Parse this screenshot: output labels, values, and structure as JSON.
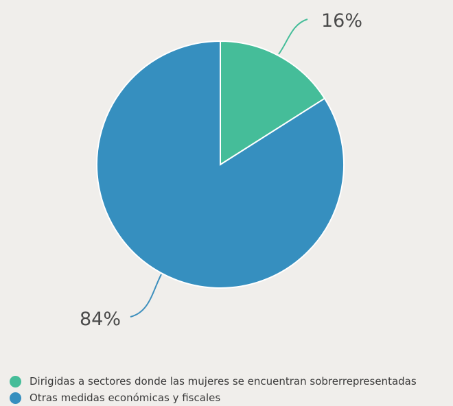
{
  "chart_data": {
    "type": "pie",
    "title": "",
    "slices": [
      {
        "label": "Dirigidas a sectores donde las mujeres se encuentran sobrerrepresentadas",
        "value": 16,
        "value_label": "16%",
        "color": "#45bd99"
      },
      {
        "label": "Otras medidas económicas y fiscales",
        "value": 84,
        "value_label": "84%",
        "color": "#368fbf"
      }
    ],
    "legend": "bottom-left",
    "leader_line_color": "#3d8fbd"
  }
}
